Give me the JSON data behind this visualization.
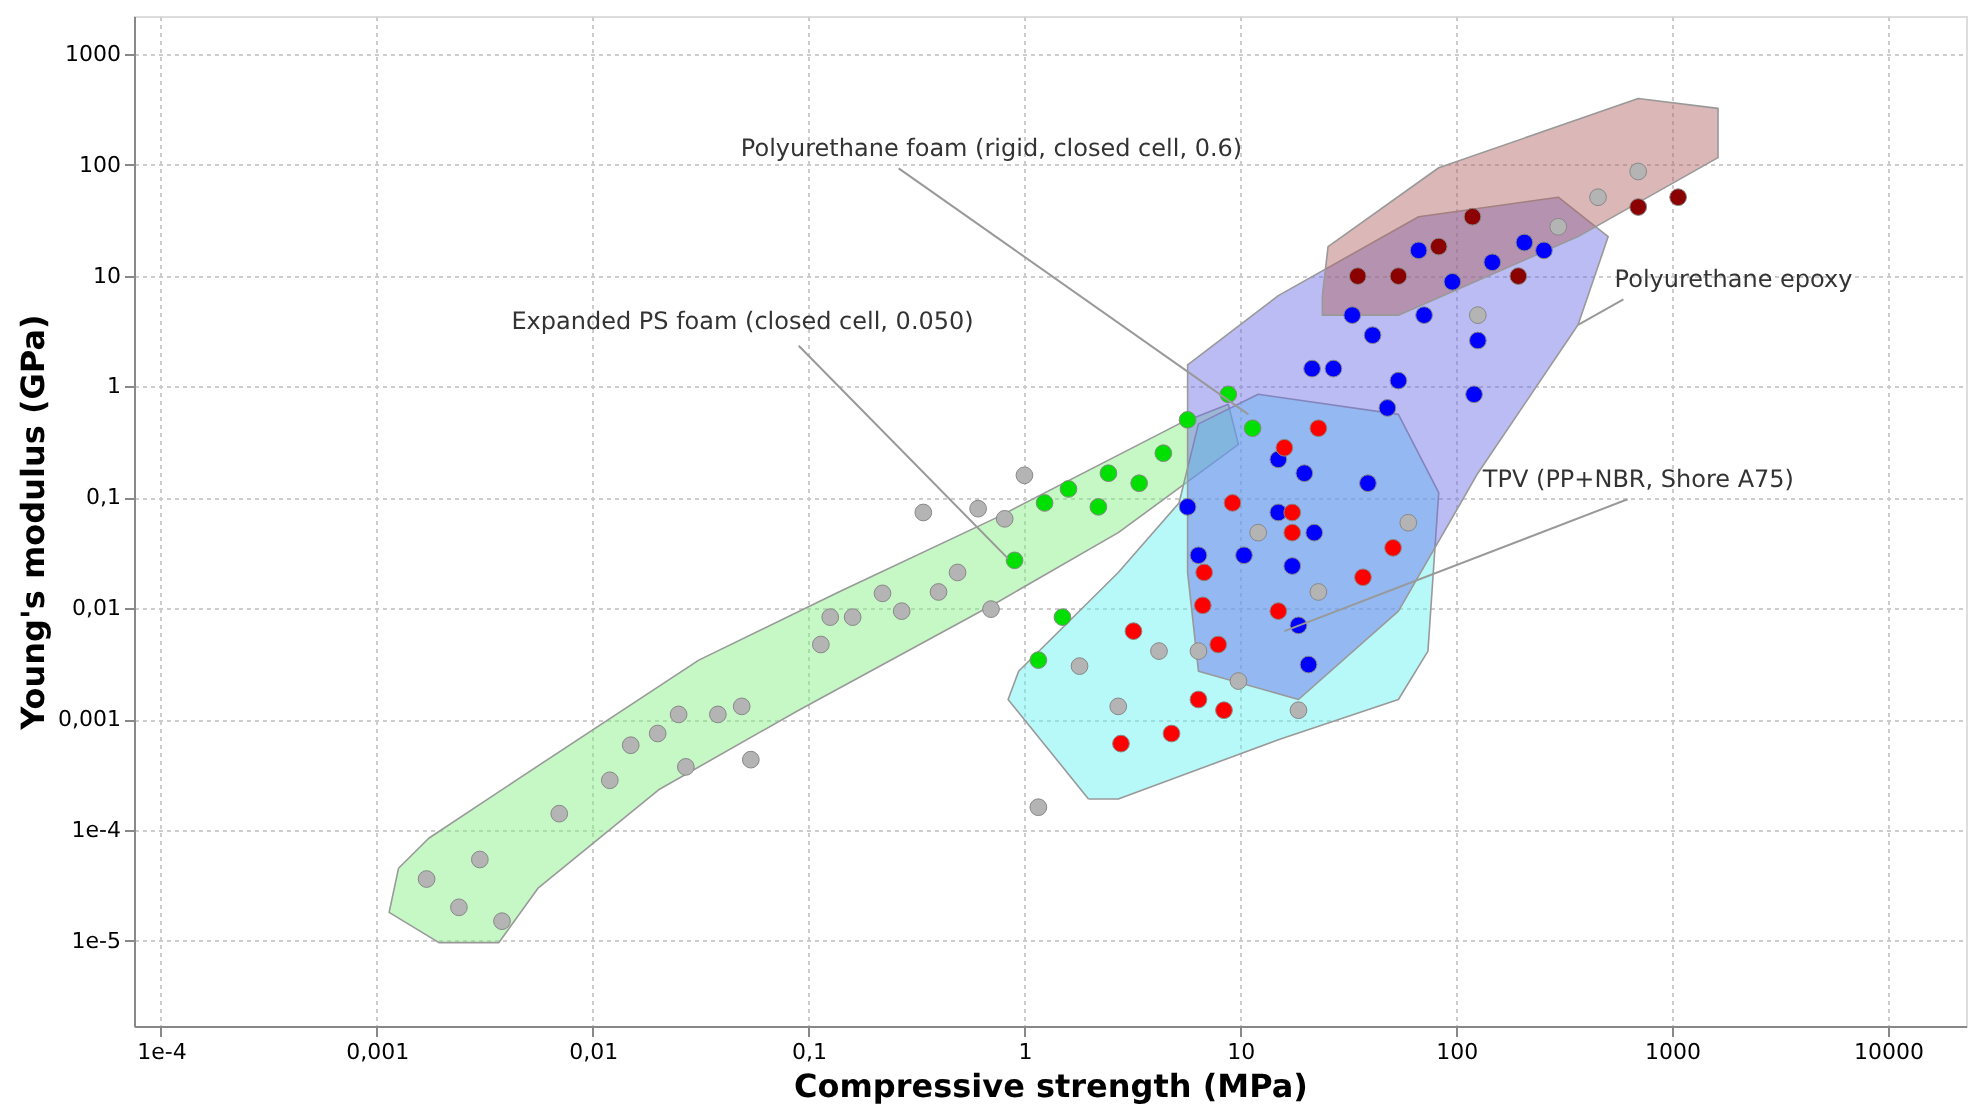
{
  "chart_data": {
    "type": "scatter",
    "xlabel": "Compressive strength (MPa)",
    "ylabel": "Young's modulus (GPa)",
    "log": "xy",
    "grid": true,
    "marker": "circle",
    "xlim": [
      7.5e-05,
      23000
    ],
    "ylim": [
      1.7e-06,
      2200
    ],
    "xticks": [
      {
        "value": 0.0001,
        "label": "1e-4"
      },
      {
        "value": 0.001,
        "label": "0,001"
      },
      {
        "value": 0.01,
        "label": "0,01"
      },
      {
        "value": 0.1,
        "label": "0,1"
      },
      1,
      10,
      100,
      1000,
      10000
    ],
    "yticks": [
      {
        "value": 1e-05,
        "label": "1e-5"
      },
      {
        "value": 0.0001,
        "label": "1e-4"
      },
      {
        "value": 0.001,
        "label": "0,001"
      },
      {
        "value": 0.01,
        "label": "0,01"
      },
      {
        "value": 0.1,
        "label": "0,1"
      },
      1,
      10,
      100,
      1000
    ],
    "annotations": [
      {
        "text": "Polyurethane foam (rigid, closed cell, 0.6)",
        "x": 10.9,
        "y": 0.56
      },
      {
        "text": "Expanded PS foam (closed cell, 0.050)",
        "x": 0.84,
        "y": 0.028
      },
      {
        "text": "Polyurethane epoxy",
        "x": 367,
        "y": 3.6
      },
      {
        "text": "TPV (PP+NBR, Shore A75)",
        "x": 16,
        "y": 0.0062
      }
    ],
    "series": [
      {
        "type": "area",
        "marker": "none",
        "color": "#7fef7f",
        "x": [
          0.00126,
          0.00174,
          0.00454,
          0.031,
          0.138,
          0.76,
          5.2,
          8.8,
          9.8,
          2.72,
          0.76,
          0.09,
          0.0202,
          0.0056,
          0.00367,
          0.00194,
          0.00114,
          0.00126
        ],
        "values": [
          4.5e-05,
          8.4e-05,
          0.00029,
          0.0034,
          0.014,
          0.067,
          0.46,
          0.69,
          0.3,
          0.048,
          0.0115,
          0.0012,
          0.00023,
          3e-05,
          9.6e-06,
          9.6e-06,
          1.8e-05,
          4.5e-05
        ]
      },
      {
        "type": "area",
        "marker": "none",
        "color": "#5ff0f0",
        "x": [
          1.98,
          0.84,
          0.94,
          2.72,
          5.2,
          6.4,
          12.1,
          54,
          83,
          74,
          54,
          15,
          2.72,
          1.98
        ],
        "values": [
          0.00019,
          0.0015,
          0.0027,
          0.021,
          0.089,
          0.46,
          0.85,
          0.56,
          0.11,
          0.0041,
          0.0015,
          0.00065,
          0.00019,
          0.00019
        ]
      },
      {
        "type": "area",
        "marker": "none",
        "color": "#6a6ae8",
        "x": [
          5.7,
          5.7,
          15,
          67,
          297,
          506,
          367,
          126,
          54,
          18.6,
          6.4,
          5.7
        ],
        "values": [
          0.021,
          1.57,
          6.6,
          34,
          51,
          22.5,
          3.6,
          0.165,
          0.0094,
          0.0015,
          0.0027,
          0.021
        ]
      },
      {
        "type": "area",
        "marker": "none",
        "color": "#b06060",
        "x": [
          24,
          25.5,
          83,
          697,
          1633,
          1633,
          367,
          54,
          24,
          24
        ],
        "values": [
          6.6,
          18.3,
          94,
          396,
          323,
          116,
          22.5,
          4.4,
          4.4,
          6.6
        ]
      },
      {
        "color": "#b4b4b4",
        "x": [
          0.0017,
          0.0024,
          0.0038,
          0.003,
          0.007,
          0.012,
          0.015,
          0.02,
          0.025,
          0.027,
          0.038,
          0.049,
          0.054,
          0.114,
          0.126,
          0.16,
          0.22,
          0.27,
          0.4,
          0.34,
          0.49,
          0.7,
          1.0,
          0.81,
          0.61,
          1.8,
          2.72,
          3.0,
          4.2,
          6.4,
          12.1,
          23,
          60,
          18.6,
          9.8,
          1.16,
          126,
          454,
          697,
          297
        ],
        "values": [
          3.6e-05,
          2e-05,
          1.5e-05,
          5.4e-05,
          0.00014,
          0.00028,
          0.00058,
          0.00074,
          0.0011,
          0.00037,
          0.0011,
          0.0013,
          0.00043,
          0.0047,
          0.0083,
          0.0083,
          0.0136,
          0.0094,
          0.014,
          0.073,
          0.021,
          0.0098,
          0.158,
          0.064,
          0.079,
          0.003,
          0.0013,
          null,
          0.0041,
          0.0041,
          0.048,
          0.014,
          0.059,
          0.0012,
          0.0022,
          0.00016,
          4.4,
          51,
          87,
          27.6
        ]
      },
      {
        "color": "#00e000",
        "x": [
          0.9,
          1.24,
          1.6,
          2.2,
          2.45,
          3.4,
          4.4,
          5.7,
          11.4,
          8.8,
          1.16,
          1.5
        ],
        "values": [
          0.027,
          0.089,
          0.119,
          0.082,
          0.165,
          0.134,
          0.25,
          0.5,
          0.42,
          0.85,
          0.0034,
          0.0083
        ]
      },
      {
        "color": "#0000ff",
        "x": [
          6.4,
          5.7,
          15,
          19.8,
          15,
          22,
          17.4,
          18.6,
          20.7,
          39,
          48,
          121,
          27,
          41,
          71,
          96,
          147,
          207,
          255,
          54,
          33,
          126,
          21.5,
          67,
          10.4
        ],
        "values": [
          0.03,
          0.082,
          0.22,
          0.165,
          0.073,
          0.048,
          0.024,
          0.007,
          0.0031,
          0.134,
          0.64,
          0.85,
          1.45,
          2.9,
          4.4,
          8.8,
          13.2,
          19.9,
          16.9,
          1.13,
          4.4,
          2.6,
          1.45,
          16.9,
          0.03
        ]
      },
      {
        "color": "#ff0000",
        "x": [
          9.2,
          6.8,
          6.7,
          7.9,
          15,
          6.4,
          4.8,
          2.8,
          51,
          37,
          23,
          16,
          17.4,
          3.2,
          8.4,
          17.4
        ],
        "values": [
          0.089,
          0.021,
          0.0106,
          0.0047,
          0.0094,
          0.0015,
          0.00074,
          0.0006,
          0.035,
          0.019,
          0.42,
          0.28,
          0.073,
          0.0062,
          0.0012,
          0.048
        ]
      },
      {
        "color": "#8b0000",
        "x": [
          119,
          35,
          83,
          54,
          1067,
          697,
          194
        ],
        "values": [
          34,
          9.9,
          18.3,
          9.9,
          51,
          41.6,
          9.9
        ]
      }
    ]
  }
}
